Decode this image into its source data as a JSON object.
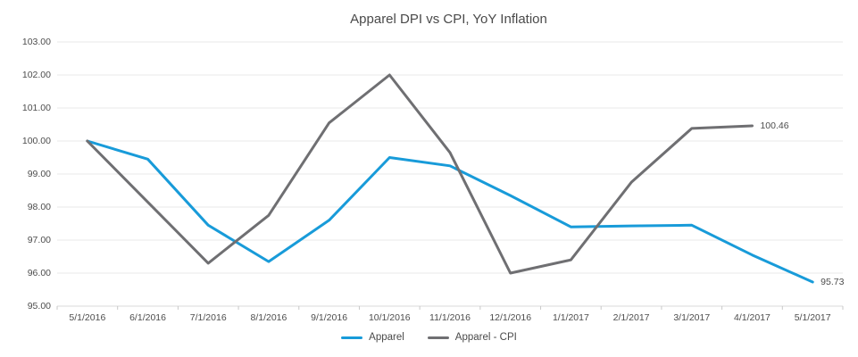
{
  "title": "Apparel DPI vs CPI, YoY Inflation",
  "colors": {
    "apparel_blue": "#189bd9",
    "cpi_gray": "#6f6f72",
    "gridline": "#e9e9e9",
    "axis_line": "#d9d9d9",
    "tick_mark": "#c9c9c9",
    "label_text": "#4d4d4d",
    "background": "#ffffff"
  },
  "chart_data": {
    "type": "line",
    "title": "Apparel DPI vs CPI, YoY Inflation",
    "categories": [
      "5/1/2016",
      "6/1/2016",
      "7/1/2016",
      "8/1/2016",
      "9/1/2016",
      "10/1/2016",
      "11/1/2016",
      "12/1/2016",
      "1/1/2017",
      "2/1/2017",
      "3/1/2017",
      "4/1/2017",
      "5/1/2017"
    ],
    "series": [
      {
        "name": "Apparel",
        "color": "#189bd9",
        "values": [
          100.0,
          99.45,
          97.45,
          96.35,
          97.6,
          99.5,
          99.25,
          98.35,
          97.4,
          97.43,
          97.45,
          96.55,
          95.73
        ],
        "end_label": "95.73"
      },
      {
        "name": "Apparel - CPI",
        "color": "#6f6f72",
        "values": [
          100.0,
          98.15,
          96.3,
          97.75,
          100.55,
          102.0,
          99.65,
          96.0,
          96.4,
          98.75,
          100.38,
          100.46,
          null
        ],
        "end_label": "100.46"
      }
    ],
    "ylim": [
      95,
      103
    ],
    "ytick_step": 1,
    "ytick_labels": [
      "95.00",
      "96.00",
      "97.00",
      "98.00",
      "99.00",
      "100.00",
      "101.00",
      "102.00",
      "103.00"
    ],
    "xlabel": "",
    "ylabel": "",
    "grid": true,
    "legend_position": "bottom"
  },
  "legend": {
    "items": [
      {
        "label": "Apparel",
        "color": "#189bd9"
      },
      {
        "label": "Apparel - CPI",
        "color": "#6f6f72"
      }
    ]
  }
}
